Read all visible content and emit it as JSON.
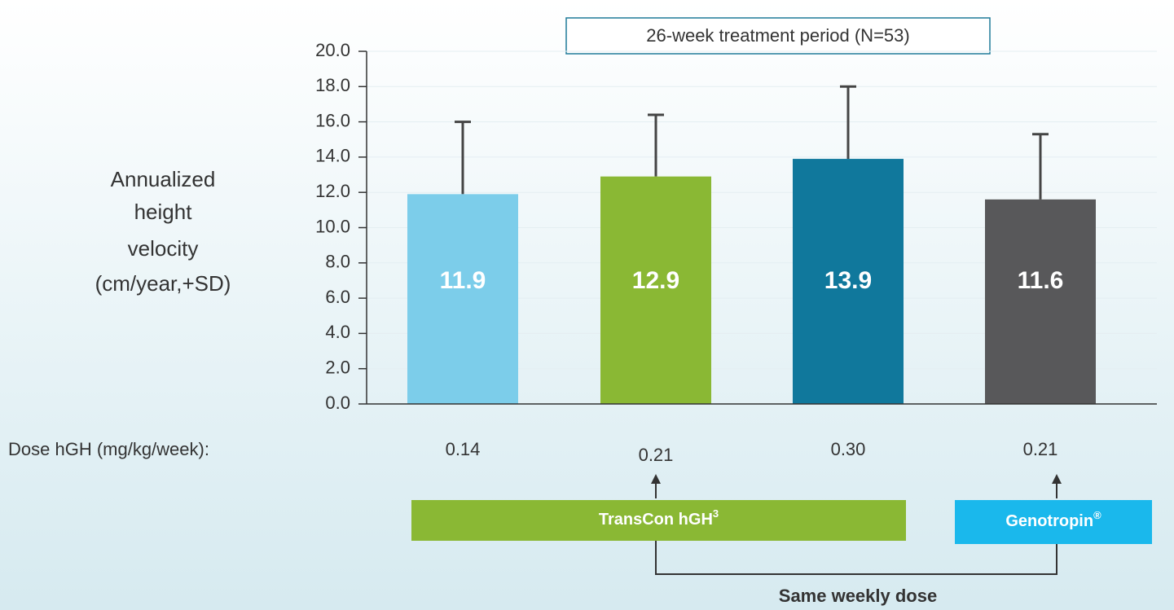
{
  "chart_data": {
    "type": "bar",
    "title": "26-week treatment period (N=53)",
    "ylabel": [
      "Annualized",
      "height",
      "velocity",
      "(cm/year,+SD)"
    ],
    "xlabel": "Dose hGH (mg/kg/week):",
    "categories": [
      "0.14",
      "0.21",
      "0.30",
      "0.21"
    ],
    "values": [
      11.9,
      12.9,
      13.9,
      11.6
    ],
    "errors": [
      4.1,
      3.5,
      4.1,
      3.7
    ],
    "colors": [
      "#7ccdea",
      "#8ab834",
      "#10789c",
      "#58585a"
    ],
    "ylim": [
      0,
      20
    ],
    "yticks": [
      {
        "value": 0,
        "label": "0.0"
      },
      {
        "value": 2,
        "label": "2.0"
      },
      {
        "value": 4,
        "label": "4.0"
      },
      {
        "value": 6,
        "label": "6.0"
      },
      {
        "value": 8,
        "label": "8.0"
      },
      {
        "value": 10,
        "label": "10.0"
      },
      {
        "value": 12,
        "label": "12.0"
      },
      {
        "value": 14,
        "label": "14.0"
      },
      {
        "value": 16,
        "label": "16.0"
      },
      {
        "value": 18,
        "label": "18.0"
      },
      {
        "value": 20,
        "label": "20.0"
      }
    ],
    "groups": [
      {
        "text": "TransCon hGH",
        "sup": "3",
        "color": "#8ab834"
      },
      {
        "text": "Genotropin",
        "sup": "®",
        "color": "#1ab8ec"
      }
    ],
    "comparison": "Same weekly dose"
  }
}
